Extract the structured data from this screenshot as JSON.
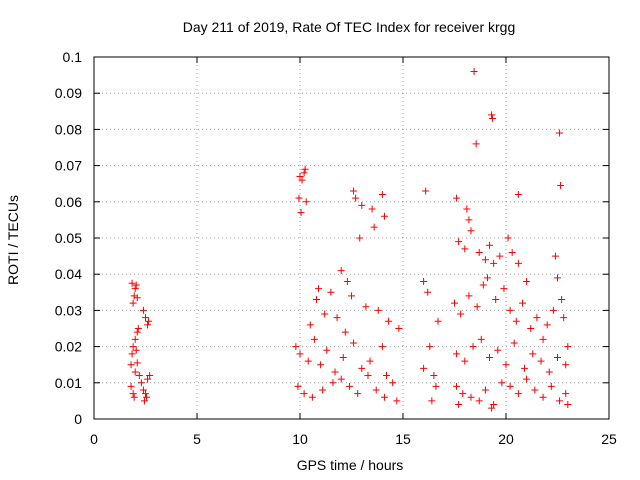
{
  "chart_data": {
    "type": "scatter",
    "title": "Day 211 of 2019, Rate Of TEC Index for receiver krgg",
    "xlabel": "GPS time / hours",
    "ylabel": "ROTI / TECUs",
    "xlim": [
      0,
      25
    ],
    "ylim": [
      0,
      0.1
    ],
    "x_ticks": [
      0,
      5,
      10,
      15,
      20,
      25
    ],
    "x_tick_labels": [
      "0",
      "5",
      "10",
      "15",
      "20",
      "25"
    ],
    "y_ticks": [
      0,
      0.01,
      0.02,
      0.03,
      0.04,
      0.05,
      0.06,
      0.07,
      0.08,
      0.09,
      0.1
    ],
    "y_tick_labels": [
      "0",
      "0.01",
      "0.02",
      "0.03",
      "0.04",
      "0.05",
      "0.06",
      "0.07",
      "0.08",
      "0.09",
      "0.1"
    ],
    "grid": true,
    "legend": "none",
    "marker": "+",
    "marker_color": "#ff0000",
    "series": [
      {
        "name": "ROTI",
        "points": [
          [
            1.85,
            0.0375
          ],
          [
            1.9,
            0.032
          ],
          [
            1.95,
            0.034
          ],
          [
            2.0,
            0.036
          ],
          [
            2.05,
            0.037
          ],
          [
            2.1,
            0.0335
          ],
          [
            2.15,
            0.025
          ],
          [
            2.1,
            0.024
          ],
          [
            2.4,
            0.03
          ],
          [
            2.5,
            0.028
          ],
          [
            2.6,
            0.026
          ],
          [
            2.65,
            0.027
          ],
          [
            1.8,
            0.015
          ],
          [
            1.85,
            0.018
          ],
          [
            1.9,
            0.02
          ],
          [
            2.0,
            0.022
          ],
          [
            2.05,
            0.019
          ],
          [
            2.0,
            0.013
          ],
          [
            2.1,
            0.0155
          ],
          [
            2.2,
            0.012
          ],
          [
            1.8,
            0.009
          ],
          [
            1.9,
            0.007
          ],
          [
            1.95,
            0.006
          ],
          [
            2.3,
            0.01
          ],
          [
            2.4,
            0.008
          ],
          [
            2.5,
            0.007
          ],
          [
            2.6,
            0.011
          ],
          [
            2.7,
            0.012
          ],
          [
            2.45,
            0.005
          ],
          [
            2.55,
            0.006
          ],
          [
            10.0,
            0.067
          ],
          [
            10.1,
            0.066
          ],
          [
            10.2,
            0.068
          ],
          [
            10.25,
            0.069
          ],
          [
            9.95,
            0.061
          ],
          [
            10.05,
            0.057
          ],
          [
            10.3,
            0.06
          ],
          [
            12.6,
            0.063
          ],
          [
            12.7,
            0.061
          ],
          [
            13.0,
            0.059
          ],
          [
            14.0,
            0.062
          ],
          [
            14.1,
            0.056
          ],
          [
            12.9,
            0.05
          ],
          [
            13.5,
            0.058
          ],
          [
            13.6,
            0.053
          ],
          [
            12.0,
            0.041
          ],
          [
            11.5,
            0.035
          ],
          [
            10.8,
            0.033
          ],
          [
            10.9,
            0.036
          ],
          [
            11.2,
            0.029
          ],
          [
            12.3,
            0.038
          ],
          [
            12.5,
            0.034
          ],
          [
            13.2,
            0.031
          ],
          [
            13.8,
            0.03
          ],
          [
            14.3,
            0.027
          ],
          [
            14.8,
            0.025
          ],
          [
            9.8,
            0.02
          ],
          [
            10.0,
            0.018
          ],
          [
            10.4,
            0.016
          ],
          [
            10.7,
            0.022
          ],
          [
            11.0,
            0.015
          ],
          [
            11.3,
            0.019
          ],
          [
            11.7,
            0.013
          ],
          [
            12.1,
            0.017
          ],
          [
            12.6,
            0.021
          ],
          [
            13.0,
            0.014
          ],
          [
            13.4,
            0.016
          ],
          [
            14.0,
            0.02
          ],
          [
            14.2,
            0.012
          ],
          [
            9.9,
            0.009
          ],
          [
            10.2,
            0.007
          ],
          [
            10.6,
            0.006
          ],
          [
            11.1,
            0.008
          ],
          [
            11.6,
            0.01
          ],
          [
            12.0,
            0.011
          ],
          [
            12.4,
            0.009
          ],
          [
            12.8,
            0.007
          ],
          [
            13.3,
            0.012
          ],
          [
            13.7,
            0.008
          ],
          [
            14.1,
            0.006
          ],
          [
            14.5,
            0.01
          ],
          [
            14.7,
            0.005
          ],
          [
            10.5,
            0.026
          ],
          [
            11.8,
            0.028
          ],
          [
            12.2,
            0.024
          ],
          [
            16.1,
            0.063
          ],
          [
            16.0,
            0.038
          ],
          [
            16.2,
            0.035
          ],
          [
            16.3,
            0.02
          ],
          [
            16.0,
            0.014
          ],
          [
            16.5,
            0.012
          ],
          [
            16.6,
            0.009
          ],
          [
            16.7,
            0.027
          ],
          [
            16.4,
            0.005
          ],
          [
            17.6,
            0.061
          ],
          [
            18.1,
            0.058
          ],
          [
            18.2,
            0.055
          ],
          [
            18.45,
            0.096
          ],
          [
            18.55,
            0.076
          ],
          [
            19.3,
            0.084
          ],
          [
            19.35,
            0.083
          ],
          [
            17.7,
            0.049
          ],
          [
            18.0,
            0.047
          ],
          [
            18.3,
            0.052
          ],
          [
            18.7,
            0.046
          ],
          [
            19.0,
            0.044
          ],
          [
            19.2,
            0.048
          ],
          [
            19.4,
            0.043
          ],
          [
            19.7,
            0.045
          ],
          [
            20.1,
            0.05
          ],
          [
            20.3,
            0.046
          ],
          [
            20.6,
            0.062
          ],
          [
            20.6,
            0.043
          ],
          [
            21.0,
            0.038
          ],
          [
            22.6,
            0.079
          ],
          [
            22.65,
            0.0645
          ],
          [
            22.4,
            0.045
          ],
          [
            22.5,
            0.039
          ],
          [
            22.7,
            0.033
          ],
          [
            17.5,
            0.032
          ],
          [
            17.8,
            0.029
          ],
          [
            18.2,
            0.034
          ],
          [
            18.6,
            0.031
          ],
          [
            18.9,
            0.037
          ],
          [
            19.1,
            0.039
          ],
          [
            19.5,
            0.033
          ],
          [
            19.9,
            0.036
          ],
          [
            20.2,
            0.03
          ],
          [
            20.5,
            0.027
          ],
          [
            20.8,
            0.032
          ],
          [
            21.2,
            0.025
          ],
          [
            21.5,
            0.028
          ],
          [
            21.8,
            0.022
          ],
          [
            22.0,
            0.026
          ],
          [
            22.3,
            0.03
          ],
          [
            22.8,
            0.028
          ],
          [
            23.0,
            0.02
          ],
          [
            17.6,
            0.018
          ],
          [
            18.0,
            0.016
          ],
          [
            18.4,
            0.02
          ],
          [
            18.8,
            0.022
          ],
          [
            19.2,
            0.017
          ],
          [
            19.6,
            0.019
          ],
          [
            20.0,
            0.015
          ],
          [
            20.4,
            0.021
          ],
          [
            20.9,
            0.014
          ],
          [
            21.3,
            0.018
          ],
          [
            21.7,
            0.016
          ],
          [
            22.1,
            0.013
          ],
          [
            22.5,
            0.017
          ],
          [
            22.9,
            0.015
          ],
          [
            17.6,
            0.009
          ],
          [
            17.9,
            0.007
          ],
          [
            18.3,
            0.006
          ],
          [
            18.7,
            0.005
          ],
          [
            19.0,
            0.008
          ],
          [
            19.4,
            0.004
          ],
          [
            19.8,
            0.01
          ],
          [
            20.2,
            0.009
          ],
          [
            20.6,
            0.007
          ],
          [
            21.0,
            0.011
          ],
          [
            21.4,
            0.008
          ],
          [
            21.8,
            0.006
          ],
          [
            22.2,
            0.009
          ],
          [
            22.6,
            0.005
          ],
          [
            22.9,
            0.007
          ],
          [
            23.0,
            0.004
          ],
          [
            19.3,
            0.003
          ],
          [
            17.7,
            0.004
          ]
        ]
      }
    ]
  }
}
